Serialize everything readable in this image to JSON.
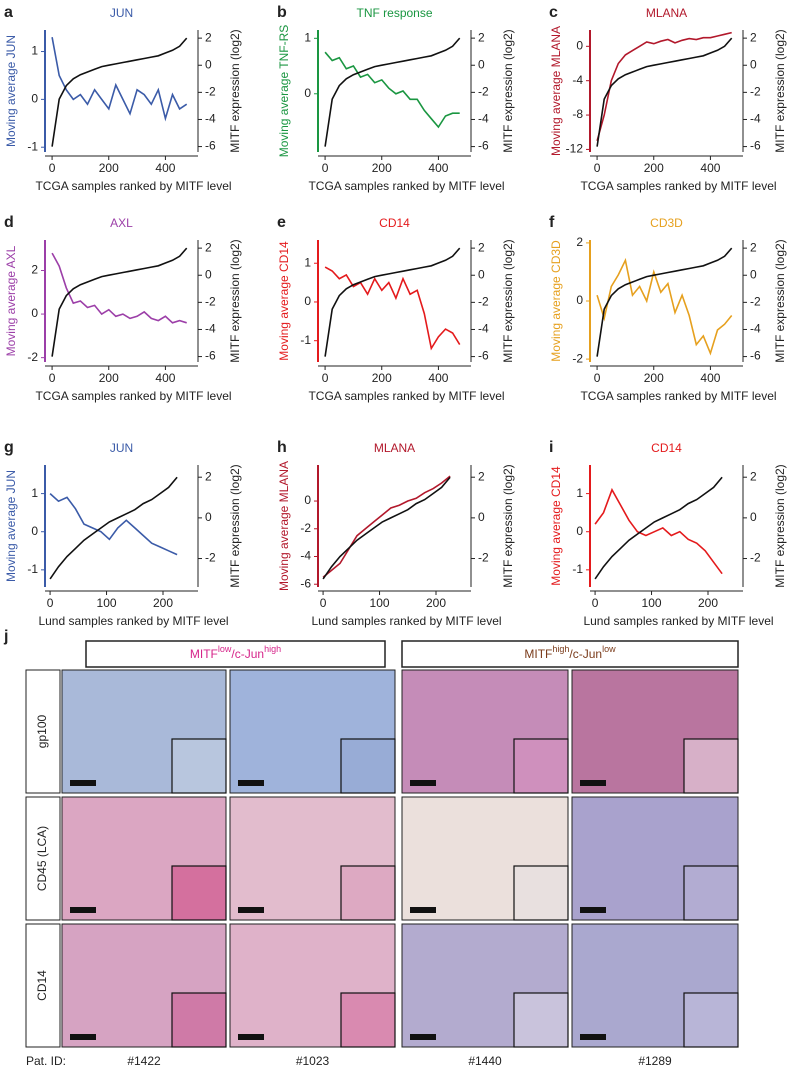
{
  "chart_data": [
    {
      "type": "line",
      "panel": "a",
      "title": "JUN",
      "xlabel": "TCGA samples ranked by MITF level",
      "ylabel": "Moving average JUN",
      "y2label": "MITF expression (log2)",
      "x": [
        0,
        25,
        50,
        75,
        100,
        125,
        150,
        175,
        200,
        225,
        250,
        275,
        300,
        325,
        350,
        375,
        400,
        425,
        450,
        475
      ],
      "xlim": [
        -25,
        515
      ],
      "xticks": [
        0,
        200,
        400
      ],
      "ylim": [
        -1.1,
        1.45
      ],
      "yticks": [
        -1,
        0,
        1
      ],
      "y2lim": [
        -6.4,
        2.6
      ],
      "y2ticks": [
        -6,
        -4,
        -2,
        0,
        2
      ],
      "series": [
        {
          "color": "#3b5ba8",
          "values": [
            1.3,
            0.5,
            0.2,
            0.0,
            0.1,
            -0.1,
            0.2,
            0.0,
            -0.2,
            0.3,
            0.0,
            -0.3,
            0.2,
            0.1,
            -0.1,
            0.2,
            -0.4,
            0.1,
            -0.2,
            -0.1
          ]
        },
        {
          "color": "#111111",
          "axis": "y2",
          "values": [
            -6,
            -2.5,
            -1.5,
            -1,
            -0.7,
            -0.5,
            -0.3,
            -0.1,
            0,
            0.1,
            0.2,
            0.3,
            0.4,
            0.5,
            0.6,
            0.7,
            0.9,
            1.1,
            1.4,
            2
          ]
        }
      ]
    },
    {
      "type": "line",
      "panel": "b",
      "title": "TNF response",
      "xlabel": "TCGA samples ranked by MITF level",
      "ylabel": "Moving average TNF-RS",
      "y2label": "MITF expression (log2)",
      "x": [
        0,
        25,
        50,
        75,
        100,
        125,
        150,
        175,
        200,
        225,
        250,
        275,
        300,
        325,
        350,
        375,
        400,
        425,
        450,
        475
      ],
      "xlim": [
        -25,
        515
      ],
      "xticks": [
        0,
        200,
        400
      ],
      "ylim": [
        -1.05,
        1.15
      ],
      "yticks": [
        0,
        1
      ],
      "y2lim": [
        -6.4,
        2.6
      ],
      "y2ticks": [
        -6,
        -4,
        -2,
        0,
        2
      ],
      "series": [
        {
          "color": "#1a9641",
          "values": [
            0.75,
            0.6,
            0.65,
            0.45,
            0.5,
            0.3,
            0.35,
            0.2,
            0.25,
            0.1,
            0.0,
            0.05,
            -0.1,
            -0.1,
            -0.3,
            -0.45,
            -0.6,
            -0.4,
            -0.35,
            -0.35
          ]
        },
        {
          "color": "#111111",
          "axis": "y2",
          "values": [
            -6,
            -2.5,
            -1.5,
            -1,
            -0.7,
            -0.5,
            -0.3,
            -0.1,
            0,
            0.1,
            0.2,
            0.3,
            0.4,
            0.5,
            0.6,
            0.7,
            0.9,
            1.1,
            1.4,
            2
          ]
        }
      ]
    },
    {
      "type": "line",
      "panel": "c",
      "title": "MLANA",
      "xlabel": "TCGA samples ranked by MITF level",
      "ylabel": "Moving average MLANA",
      "y2label": "MITF expression (log2)",
      "x": [
        0,
        25,
        50,
        75,
        100,
        125,
        150,
        175,
        200,
        225,
        250,
        275,
        300,
        325,
        350,
        375,
        400,
        425,
        450,
        475
      ],
      "xlim": [
        -25,
        515
      ],
      "xticks": [
        0,
        200,
        400
      ],
      "ylim": [
        -12.3,
        1.9
      ],
      "yticks": [
        -12,
        -8,
        -4,
        0
      ],
      "y2lim": [
        -6.4,
        2.6
      ],
      "y2ticks": [
        -6,
        -4,
        -2,
        0,
        2
      ],
      "series": [
        {
          "color": "#b2182b",
          "values": [
            -11,
            -8,
            -4,
            -2,
            -1,
            -0.5,
            0,
            0.5,
            0.3,
            0.6,
            0.8,
            0.4,
            0.7,
            0.9,
            0.8,
            1.0,
            1.0,
            1.2,
            1.4,
            1.6
          ]
        },
        {
          "color": "#111111",
          "axis": "y2",
          "values": [
            -6,
            -2.5,
            -1.5,
            -1,
            -0.7,
            -0.5,
            -0.3,
            -0.1,
            0,
            0.1,
            0.2,
            0.3,
            0.4,
            0.5,
            0.6,
            0.7,
            0.9,
            1.1,
            1.4,
            2
          ]
        }
      ]
    },
    {
      "type": "line",
      "panel": "d",
      "title": "AXL",
      "xlabel": "TCGA samples ranked by MITF level",
      "ylabel": "Moving average AXL",
      "y2label": "MITF expression (log2)",
      "x": [
        0,
        25,
        50,
        75,
        100,
        125,
        150,
        175,
        200,
        225,
        250,
        275,
        300,
        325,
        350,
        375,
        400,
        425,
        450,
        475
      ],
      "xlim": [
        -25,
        515
      ],
      "xticks": [
        0,
        200,
        400
      ],
      "ylim": [
        -2.2,
        3.4
      ],
      "yticks": [
        -2,
        0,
        2
      ],
      "y2lim": [
        -6.4,
        2.6
      ],
      "y2ticks": [
        -6,
        -4,
        -2,
        0,
        2
      ],
      "series": [
        {
          "color": "#9c3fa8",
          "values": [
            2.8,
            2.2,
            1.2,
            0.5,
            0.6,
            0.3,
            0.4,
            0.0,
            0.2,
            -0.1,
            0.0,
            -0.2,
            -0.1,
            0.1,
            -0.2,
            -0.3,
            -0.1,
            -0.4,
            -0.3,
            -0.4
          ]
        },
        {
          "color": "#111111",
          "axis": "y2",
          "values": [
            -6,
            -2.5,
            -1.5,
            -1,
            -0.7,
            -0.5,
            -0.3,
            -0.1,
            0,
            0.1,
            0.2,
            0.3,
            0.4,
            0.5,
            0.6,
            0.7,
            0.9,
            1.1,
            1.4,
            2
          ]
        }
      ]
    },
    {
      "type": "line",
      "panel": "e",
      "title": "CD14",
      "xlabel": "TCGA samples ranked by MITF level",
      "ylabel": "Moving average CD14",
      "y2label": "MITF expression (log2)",
      "x": [
        0,
        25,
        50,
        75,
        100,
        125,
        150,
        175,
        200,
        225,
        250,
        275,
        300,
        325,
        350,
        375,
        400,
        425,
        450,
        475
      ],
      "xlim": [
        -25,
        515
      ],
      "xticks": [
        0,
        200,
        400
      ],
      "ylim": [
        -1.55,
        1.6
      ],
      "yticks": [
        -1,
        0,
        1
      ],
      "y2lim": [
        -6.4,
        2.6
      ],
      "y2ticks": [
        -6,
        -4,
        -2,
        0,
        2
      ],
      "series": [
        {
          "color": "#e41a1c",
          "values": [
            0.9,
            0.8,
            0.6,
            0.7,
            0.4,
            0.5,
            0.2,
            0.6,
            0.3,
            0.5,
            0.1,
            0.6,
            0.2,
            0.3,
            -0.3,
            -1.2,
            -0.9,
            -0.7,
            -0.8,
            -1.1
          ]
        },
        {
          "color": "#111111",
          "axis": "y2",
          "values": [
            -6,
            -2.5,
            -1.5,
            -1,
            -0.7,
            -0.5,
            -0.3,
            -0.1,
            0,
            0.1,
            0.2,
            0.3,
            0.4,
            0.5,
            0.6,
            0.7,
            0.9,
            1.1,
            1.4,
            2
          ]
        }
      ]
    },
    {
      "type": "line",
      "panel": "f",
      "title": "CD3D",
      "xlabel": "TCGA samples ranked by MITF level",
      "ylabel": "Moving average CD3D",
      "y2label": "MITF expression (log2)",
      "x": [
        0,
        25,
        50,
        75,
        100,
        125,
        150,
        175,
        200,
        225,
        250,
        275,
        300,
        325,
        350,
        375,
        400,
        425,
        450,
        475
      ],
      "xlim": [
        -25,
        515
      ],
      "xticks": [
        0,
        200,
        400
      ],
      "ylim": [
        -2.1,
        2.1
      ],
      "yticks": [
        -2,
        0,
        2
      ],
      "y2lim": [
        -6.4,
        2.6
      ],
      "y2ticks": [
        -6,
        -4,
        -2,
        0,
        2
      ],
      "series": [
        {
          "color": "#e6a01e",
          "values": [
            0.2,
            -0.6,
            0.5,
            0.9,
            1.4,
            0.2,
            0.5,
            0.0,
            1.0,
            0.3,
            0.6,
            -0.4,
            0.2,
            -0.5,
            -1.5,
            -1.2,
            -1.8,
            -1.0,
            -0.8,
            -0.5
          ]
        },
        {
          "color": "#111111",
          "axis": "y2",
          "values": [
            -6,
            -2.5,
            -1.5,
            -1,
            -0.7,
            -0.5,
            -0.3,
            -0.1,
            0,
            0.1,
            0.2,
            0.3,
            0.4,
            0.5,
            0.6,
            0.7,
            0.9,
            1.1,
            1.4,
            2
          ]
        }
      ]
    },
    {
      "type": "line",
      "panel": "g",
      "title": "JUN",
      "xlabel": "Lund samples ranked by MITF level",
      "ylabel": "Moving average JUN",
      "y2label": "MITF expression (log2)",
      "x": [
        0,
        15,
        30,
        45,
        60,
        75,
        90,
        105,
        120,
        135,
        150,
        165,
        180,
        195,
        210,
        225
      ],
      "xlim": [
        -9,
        262
      ],
      "xticks": [
        0,
        100,
        200
      ],
      "ylim": [
        -1.45,
        1.75
      ],
      "yticks": [
        -1,
        0,
        1
      ],
      "y2lim": [
        -3.4,
        2.6
      ],
      "y2ticks": [
        -2,
        0,
        2
      ],
      "series": [
        {
          "color": "#3b5ba8",
          "values": [
            1.0,
            0.8,
            0.9,
            0.6,
            0.2,
            0.1,
            0.0,
            -0.2,
            0.1,
            0.3,
            0.1,
            -0.1,
            -0.3,
            -0.4,
            -0.5,
            -0.6
          ]
        },
        {
          "color": "#111111",
          "axis": "y2",
          "values": [
            -3,
            -2.4,
            -1.9,
            -1.5,
            -1.1,
            -0.8,
            -0.5,
            -0.2,
            0,
            0.2,
            0.4,
            0.7,
            0.9,
            1.2,
            1.5,
            2
          ]
        }
      ]
    },
    {
      "type": "line",
      "panel": "h",
      "title": "MLANA",
      "xlabel": "Lund samples ranked by MITF level",
      "ylabel": "Moving average MLANA",
      "y2label": "MITF expression (log2)",
      "x": [
        0,
        15,
        30,
        45,
        60,
        75,
        90,
        105,
        120,
        135,
        150,
        165,
        180,
        195,
        210,
        225
      ],
      "xlim": [
        -9,
        262
      ],
      "xticks": [
        0,
        100,
        200
      ],
      "ylim": [
        -6.2,
        2.6
      ],
      "yticks": [
        -6,
        -4,
        -2,
        0
      ],
      "y2lim": [
        -3.4,
        2.6
      ],
      "y2ticks": [
        -2,
        0,
        2
      ],
      "series": [
        {
          "color": "#b2182b",
          "values": [
            -5.5,
            -5,
            -4.5,
            -3.5,
            -2.5,
            -2,
            -1.5,
            -1,
            -0.5,
            -0.3,
            0,
            0.2,
            0.6,
            0.9,
            1.3,
            1.8
          ]
        },
        {
          "color": "#111111",
          "axis": "y2",
          "values": [
            -3,
            -2.4,
            -1.9,
            -1.5,
            -1.1,
            -0.8,
            -0.5,
            -0.2,
            0,
            0.2,
            0.4,
            0.7,
            0.9,
            1.2,
            1.5,
            2
          ]
        }
      ]
    },
    {
      "type": "line",
      "panel": "i",
      "title": "CD14",
      "xlabel": "Lund samples ranked by MITF level",
      "ylabel": "Moving average CD14",
      "y2label": "MITF expression (log2)",
      "x": [
        0,
        15,
        30,
        45,
        60,
        75,
        90,
        105,
        120,
        135,
        150,
        165,
        180,
        195,
        210,
        225
      ],
      "xlim": [
        -9,
        262
      ],
      "xticks": [
        0,
        100,
        200
      ],
      "ylim": [
        -1.45,
        1.75
      ],
      "yticks": [
        -1,
        0,
        1
      ],
      "y2lim": [
        -3.4,
        2.6
      ],
      "y2ticks": [
        -2,
        0,
        2
      ],
      "series": [
        {
          "color": "#e41a1c",
          "values": [
            0.2,
            0.5,
            1.1,
            0.7,
            0.3,
            0,
            -0.1,
            0.0,
            0.1,
            -0.1,
            0.0,
            -0.2,
            -0.3,
            -0.5,
            -0.8,
            -1.1
          ]
        },
        {
          "color": "#111111",
          "axis": "y2",
          "values": [
            -3,
            -2.4,
            -1.9,
            -1.5,
            -1.1,
            -0.8,
            -0.5,
            -0.2,
            0,
            0.2,
            0.4,
            0.7,
            0.9,
            1.2,
            1.5,
            2
          ]
        }
      ]
    }
  ],
  "panel_j": {
    "label": "j",
    "groups": [
      {
        "parts": [
          "MITF",
          "low",
          "/c-Jun",
          "high"
        ],
        "color": "#d6248a"
      },
      {
        "parts": [
          "MITF",
          "high",
          "/c-Jun",
          "low"
        ],
        "color": "#7a3b1a"
      }
    ],
    "rows": [
      "gp100",
      "CD45 (LCA)",
      "CD14"
    ],
    "id_label": "Pat. ID:",
    "patients": [
      "#1422",
      "#1023",
      "#1440",
      "#1289"
    ]
  }
}
